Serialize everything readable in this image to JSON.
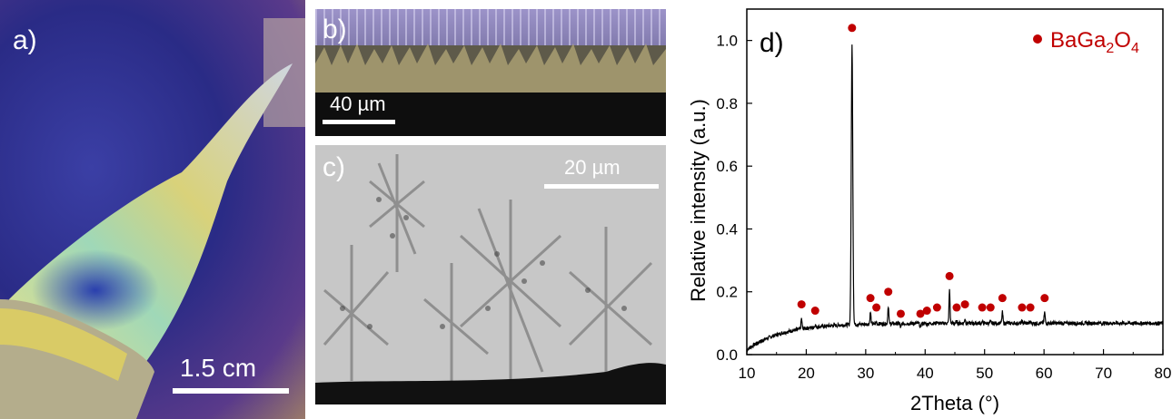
{
  "panels": {
    "a": {
      "label": "a)",
      "scale": "1.5 cm"
    },
    "b": {
      "label": "b)",
      "scale": "40 µm"
    },
    "c": {
      "label": "c)",
      "scale": "20 µm"
    },
    "d": {
      "label": "d)"
    }
  },
  "colors": {
    "marker": "#c00000",
    "trace": "#000000"
  },
  "chart_data": {
    "type": "line",
    "title": "",
    "xlabel": "2Theta (°)",
    "ylabel": "Relative intensity (a.u.)",
    "xlim": [
      10,
      80
    ],
    "ylim": [
      0,
      1.1
    ],
    "xticks": [
      10,
      20,
      30,
      40,
      50,
      60,
      70,
      80
    ],
    "yticks": [
      0.0,
      0.2,
      0.4,
      0.6,
      0.8,
      1.0
    ],
    "legend": {
      "position": "top-right",
      "entries": [
        "BaGa2O4"
      ]
    },
    "series": [
      {
        "name": "BaGa2O4",
        "peaks": [
          {
            "x": 19.2,
            "y": 0.16
          },
          {
            "x": 21.5,
            "y": 0.14
          },
          {
            "x": 27.7,
            "y": 1.04
          },
          {
            "x": 30.8,
            "y": 0.18
          },
          {
            "x": 31.8,
            "y": 0.15
          },
          {
            "x": 33.8,
            "y": 0.2
          },
          {
            "x": 35.9,
            "y": 0.13
          },
          {
            "x": 39.2,
            "y": 0.13
          },
          {
            "x": 40.3,
            "y": 0.14
          },
          {
            "x": 42.0,
            "y": 0.15
          },
          {
            "x": 44.1,
            "y": 0.25
          },
          {
            "x": 45.3,
            "y": 0.15
          },
          {
            "x": 46.7,
            "y": 0.16
          },
          {
            "x": 49.6,
            "y": 0.15
          },
          {
            "x": 51.0,
            "y": 0.15
          },
          {
            "x": 53.0,
            "y": 0.18
          },
          {
            "x": 56.3,
            "y": 0.15
          },
          {
            "x": 57.7,
            "y": 0.15
          },
          {
            "x": 60.1,
            "y": 0.18
          }
        ]
      }
    ]
  }
}
